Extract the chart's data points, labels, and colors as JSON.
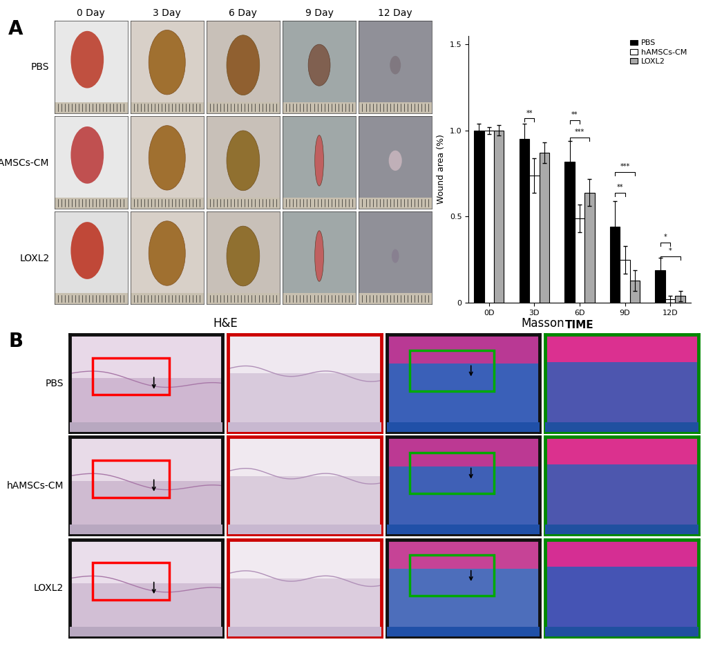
{
  "bar_data": {
    "groups": [
      "0D",
      "3D",
      "6D",
      "9D",
      "12D"
    ],
    "PBS": [
      1.0,
      0.95,
      0.82,
      0.44,
      0.19
    ],
    "hAMSCs_CM": [
      1.0,
      0.74,
      0.49,
      0.25,
      0.02
    ],
    "LOXL2": [
      1.0,
      0.87,
      0.64,
      0.13,
      0.04
    ],
    "PBS_err": [
      0.04,
      0.09,
      0.12,
      0.15,
      0.07
    ],
    "hAMSCs_CM_err": [
      0.02,
      0.1,
      0.08,
      0.08,
      0.02
    ],
    "LOXL2_err": [
      0.03,
      0.06,
      0.08,
      0.06,
      0.03
    ],
    "PBS_color": "#000000",
    "hAMSCs_CM_color": "#ffffff",
    "LOXL2_color": "#aaaaaa",
    "bar_edgecolor": "#000000",
    "ylim": [
      0,
      1.55
    ],
    "ylabel": "Wound area (%)",
    "xlabel": "TIME",
    "legend_labels": [
      "PBS",
      "hAMSCs-CM",
      "LOXL2"
    ]
  },
  "panel_A_label": "A",
  "panel_B_label": "B",
  "col_headers": [
    "0 Day",
    "3 Day",
    "6 Day",
    "9 Day",
    "12 Day"
  ],
  "row_labels_A": [
    "PBS",
    "hAMSCs-CM",
    "LOXL2"
  ],
  "section_B_stain_labels": [
    "H&E",
    "Masson"
  ],
  "section_B_row_labels": [
    "PBS",
    "hAMSCs-CM",
    "LOXL2"
  ],
  "background_color": "#ffffff",
  "font_size_panel": 20,
  "font_size_label": 10,
  "font_size_axis": 9,
  "font_size_tick": 8,
  "photo_bg_colors": [
    [
      "#e8ddd5",
      "#c8a882",
      "#b89060",
      "#909080",
      "#888888"
    ],
    [
      "#e0d0d8",
      "#c89870",
      "#c09870",
      "#a0b8c0",
      "#c0c0c8"
    ],
    [
      "#ddd8d0",
      "#c8a070",
      "#c09868",
      "#b0c0c8",
      "#909098"
    ]
  ],
  "he_low_bg": [
    "#e8d0e0",
    "#e0cce0",
    "#dcc8e0"
  ],
  "he_high_bg": [
    "#ded0de",
    "#d8ccd8",
    "#e0d0e0"
  ],
  "masson_low_bg": [
    "#5080c0",
    "#708090",
    "#9090a8"
  ],
  "masson_high_bg": [
    "#c040a0",
    "#c84898",
    "#9030a8"
  ]
}
